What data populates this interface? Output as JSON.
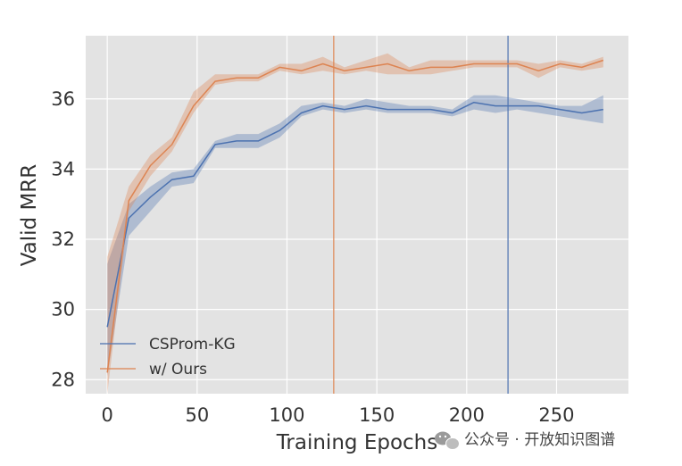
{
  "chart_data": {
    "type": "line",
    "title": "",
    "xlabel": "Training Epochs",
    "ylabel": "Valid MRR",
    "xlim": [
      -12,
      290
    ],
    "ylim": [
      27.6,
      37.8
    ],
    "x_ticks": [
      0,
      50,
      100,
      150,
      200,
      250
    ],
    "y_ticks": [
      28,
      30,
      32,
      34,
      36
    ],
    "grid": true,
    "legend_position": "lower-left",
    "vlines": [
      {
        "x": 126,
        "color": "#dd8452"
      },
      {
        "x": 223,
        "color": "#4c72b0"
      }
    ],
    "series": [
      {
        "name": "CSProm-KG",
        "color": "#4c72b0",
        "x": [
          0,
          12,
          24,
          36,
          48,
          60,
          72,
          84,
          96,
          108,
          120,
          132,
          144,
          156,
          168,
          180,
          192,
          204,
          216,
          228,
          240,
          252,
          264,
          276
        ],
        "y": [
          29.5,
          32.6,
          33.2,
          33.7,
          33.8,
          34.7,
          34.8,
          34.8,
          35.1,
          35.6,
          35.8,
          35.7,
          35.8,
          35.7,
          35.7,
          35.7,
          35.6,
          35.9,
          35.8,
          35.8,
          35.8,
          35.7,
          35.6,
          35.7
        ],
        "lower": [
          28.1,
          32.1,
          32.8,
          33.5,
          33.6,
          34.6,
          34.6,
          34.6,
          34.9,
          35.5,
          35.7,
          35.6,
          35.7,
          35.6,
          35.6,
          35.6,
          35.5,
          35.7,
          35.6,
          35.7,
          35.6,
          35.5,
          35.4,
          35.3
        ],
        "upper": [
          31.3,
          33.0,
          33.5,
          33.9,
          34.0,
          34.8,
          35.0,
          35.0,
          35.3,
          35.8,
          35.9,
          35.8,
          36.0,
          35.9,
          35.8,
          35.8,
          35.7,
          36.1,
          36.1,
          36.0,
          35.9,
          35.8,
          35.8,
          36.1
        ]
      },
      {
        "name": "w/ Ours",
        "color": "#dd8452",
        "x": [
          0,
          12,
          24,
          36,
          48,
          60,
          72,
          84,
          96,
          108,
          120,
          132,
          144,
          156,
          168,
          180,
          192,
          204,
          216,
          228,
          240,
          252,
          264,
          276
        ],
        "y": [
          28.2,
          33.1,
          34.1,
          34.7,
          35.8,
          36.5,
          36.6,
          36.6,
          36.9,
          36.8,
          37.0,
          36.8,
          36.9,
          37.0,
          36.8,
          36.9,
          36.9,
          37.0,
          37.0,
          37.0,
          36.8,
          37.0,
          36.9,
          37.1
        ],
        "lower": [
          27.6,
          32.8,
          33.8,
          34.5,
          35.6,
          36.4,
          36.5,
          36.5,
          36.8,
          36.7,
          36.8,
          36.7,
          36.8,
          36.7,
          36.7,
          36.7,
          36.8,
          36.9,
          36.9,
          36.9,
          36.6,
          36.9,
          36.8,
          36.9
        ],
        "upper": [
          31.5,
          33.5,
          34.4,
          34.9,
          36.2,
          36.7,
          36.7,
          36.7,
          37.0,
          37.0,
          37.2,
          36.9,
          37.1,
          37.3,
          36.9,
          37.1,
          37.1,
          37.1,
          37.1,
          37.1,
          37.0,
          37.1,
          37.0,
          37.2
        ]
      }
    ]
  },
  "watermark": {
    "text": "公众号 · 开放知识图谱",
    "icon": "wechat-icon"
  }
}
